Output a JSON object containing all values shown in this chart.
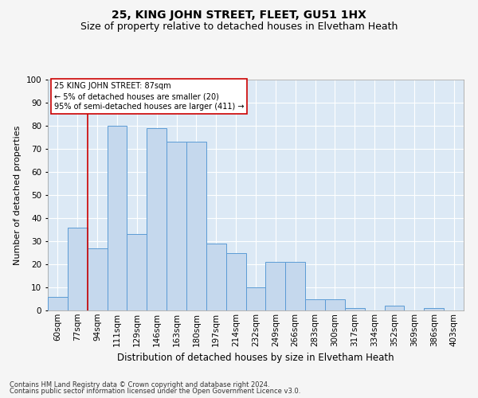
{
  "title": "25, KING JOHN STREET, FLEET, GU51 1HX",
  "subtitle": "Size of property relative to detached houses in Elvetham Heath",
  "xlabel": "Distribution of detached houses by size in Elvetham Heath",
  "ylabel": "Number of detached properties",
  "categories": [
    "60sqm",
    "77sqm",
    "94sqm",
    "111sqm",
    "129sqm",
    "146sqm",
    "163sqm",
    "180sqm",
    "197sqm",
    "214sqm",
    "232sqm",
    "249sqm",
    "266sqm",
    "283sqm",
    "300sqm",
    "317sqm",
    "334sqm",
    "352sqm",
    "369sqm",
    "386sqm",
    "403sqm"
  ],
  "values": [
    6,
    36,
    27,
    80,
    33,
    79,
    73,
    73,
    29,
    25,
    10,
    21,
    21,
    5,
    5,
    1,
    0,
    2,
    0,
    1,
    0
  ],
  "bar_color": "#c5d8ed",
  "bar_edge_color": "#5b9bd5",
  "vline_color": "#cc0000",
  "vline_x_index": 1.5,
  "annotation_text": "25 KING JOHN STREET: 87sqm\n← 5% of detached houses are smaller (20)\n95% of semi-detached houses are larger (411) →",
  "annotation_box_color": "#cc0000",
  "ylim": [
    0,
    100
  ],
  "yticks": [
    0,
    10,
    20,
    30,
    40,
    50,
    60,
    70,
    80,
    90,
    100
  ],
  "footnote1": "Contains HM Land Registry data © Crown copyright and database right 2024.",
  "footnote2": "Contains public sector information licensed under the Open Government Licence v3.0.",
  "bg_color": "#dce9f5",
  "grid_color": "#ffffff",
  "fig_bg_color": "#f5f5f5",
  "title_fontsize": 10,
  "subtitle_fontsize": 9,
  "xlabel_fontsize": 8.5,
  "ylabel_fontsize": 8,
  "tick_fontsize": 7.5,
  "annotation_fontsize": 7,
  "footnote_fontsize": 6
}
